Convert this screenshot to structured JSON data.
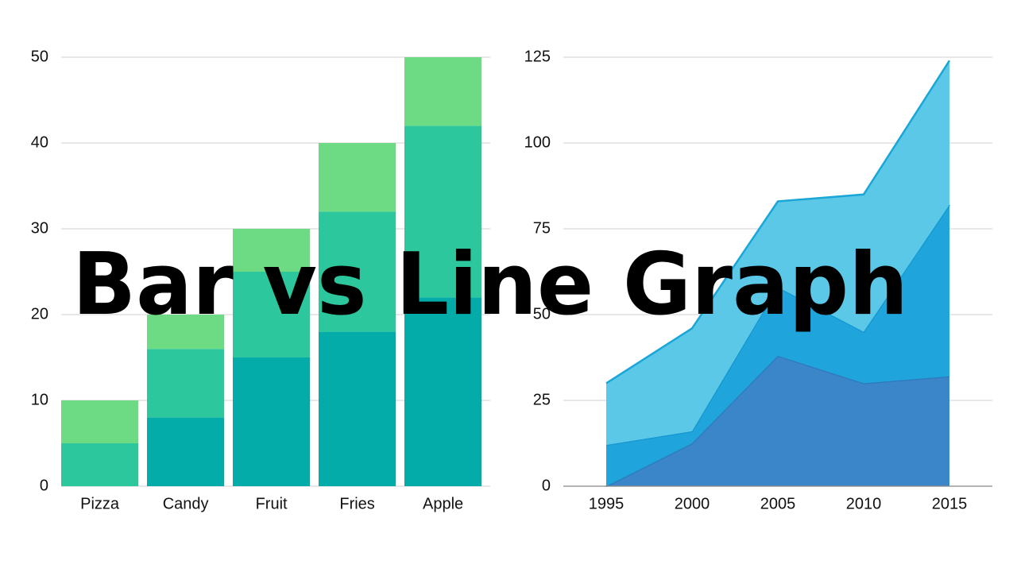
{
  "title": "Bar vs Line Graph",
  "chart_data": [
    {
      "type": "bar",
      "stacked": true,
      "categories": [
        "Pizza",
        "Candy",
        "Fruit",
        "Fries",
        "Apple"
      ],
      "series": [
        {
          "color": "#03aca8",
          "values": [
            0,
            8,
            15,
            18,
            22
          ]
        },
        {
          "color": "#2dc79d",
          "values": [
            5,
            8,
            10,
            14,
            20
          ]
        },
        {
          "color": "#6ddb84",
          "values": [
            5,
            4,
            5,
            8,
            8
          ]
        }
      ],
      "ylim": [
        0,
        50
      ],
      "yticks": [
        0,
        10,
        20,
        30,
        40,
        50
      ],
      "grid": true
    },
    {
      "type": "area",
      "stacked": true,
      "categories": [
        "1995",
        "2000",
        "2005",
        "2010",
        "2015"
      ],
      "series": [
        {
          "color": "#3a86c8",
          "line_color": "#2f78bd",
          "values": [
            0,
            12.5,
            38,
            30,
            32
          ]
        },
        {
          "color": "#1fa5dc",
          "line_color": "#1496cf",
          "values": [
            12,
            3.5,
            20,
            15,
            50
          ]
        },
        {
          "color": "#5bc8e8",
          "line_color": "#1aa6d6",
          "values": [
            18,
            30,
            25,
            40,
            42
          ]
        }
      ],
      "ylim": [
        0,
        125
      ],
      "yticks": [
        0,
        25,
        50,
        75,
        100,
        125
      ],
      "grid": true
    }
  ]
}
